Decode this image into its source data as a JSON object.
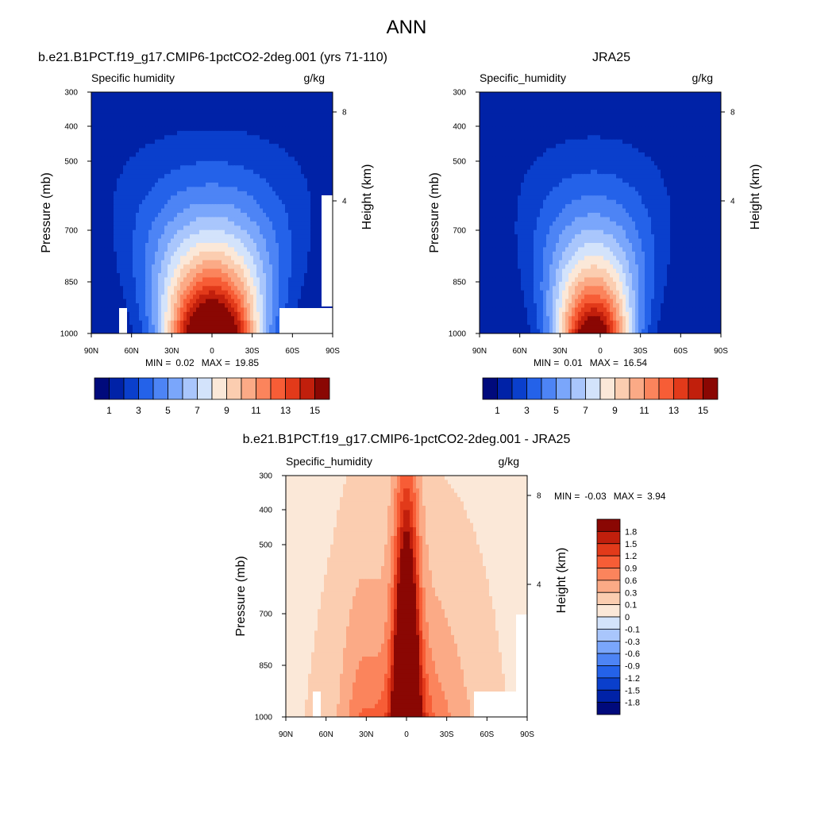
{
  "figure": {
    "title": "ANN"
  },
  "chart_data": [
    {
      "type": "heatmap",
      "title": "b.e21.B1PCT.f19_g17.CMIP6-1pctCO2-2deg.001 (yrs 71-110)",
      "subtitle_left": "Specific humidity",
      "units": "g/kg",
      "ylabel": "Pressure (mb)",
      "ylabel_right": "Height (km)",
      "x_ticks": [
        "90N",
        "60N",
        "30N",
        "0",
        "30S",
        "60S",
        "90S"
      ],
      "y_ticks": [
        "300",
        "400",
        "500",
        "700",
        "850",
        "1000"
      ],
      "y_right_ticks": [
        "8",
        "4"
      ],
      "xlim": [
        90,
        -90
      ],
      "ylim": [
        1000,
        300
      ],
      "stats": {
        "min_label": "MIN =",
        "min": "0.02",
        "max_label": "MAX =",
        "max": "19.85"
      },
      "levels": [
        0,
        1,
        2,
        3,
        4,
        5,
        6,
        7,
        8,
        9,
        10,
        11,
        12,
        13,
        14,
        15,
        16
      ],
      "colorbar_labels": [
        "1",
        "3",
        "5",
        "7",
        "9",
        "11",
        "13",
        "15"
      ],
      "field": {
        "peak": 19.85,
        "center_lat": 0,
        "top_height_km": 7.2,
        "width_deg": 34
      }
    },
    {
      "type": "heatmap",
      "title": "JRA25",
      "subtitle_left": "Specific_humidity",
      "units": "g/kg",
      "ylabel": "Pressure (mb)",
      "ylabel_right": "Height (km)",
      "x_ticks": [
        "90N",
        "60N",
        "30N",
        "0",
        "30S",
        "60S",
        "90S"
      ],
      "y_ticks": [
        "300",
        "400",
        "500",
        "700",
        "850",
        "1000"
      ],
      "y_right_ticks": [
        "8",
        "4"
      ],
      "xlim": [
        90,
        -90
      ],
      "ylim": [
        1000,
        300
      ],
      "stats": {
        "min_label": "MIN =",
        "min": "0.01",
        "max_label": "MAX =",
        "max": "16.54"
      },
      "levels": [
        0,
        1,
        2,
        3,
        4,
        5,
        6,
        7,
        8,
        9,
        10,
        11,
        12,
        13,
        14,
        15,
        16
      ],
      "colorbar_labels": [
        "1",
        "3",
        "5",
        "7",
        "9",
        "11",
        "13",
        "15"
      ],
      "field": {
        "peak": 16.54,
        "center_lat": 5,
        "top_height_km": 6.5,
        "width_deg": 28
      }
    },
    {
      "type": "heatmap",
      "title": "b.e21.B1PCT.f19_g17.CMIP6-1pctCO2-2deg.001 - JRA25",
      "subtitle_left": "Specific_humidity",
      "units": "g/kg",
      "ylabel": "Pressure (mb)",
      "ylabel_right": "Height (km)",
      "x_ticks": [
        "90N",
        "60N",
        "30N",
        "0",
        "30S",
        "60S",
        "90S"
      ],
      "y_ticks": [
        "300",
        "400",
        "500",
        "700",
        "850",
        "1000"
      ],
      "y_right_ticks": [
        "8",
        "4"
      ],
      "xlim": [
        90,
        -90
      ],
      "ylim": [
        1000,
        300
      ],
      "stats": {
        "min_label": "MIN =",
        "min": "-0.03",
        "max_label": "MAX =",
        "max": "3.94"
      },
      "levels": [
        -1.8,
        -1.5,
        -1.2,
        -0.9,
        -0.6,
        -0.3,
        -0.1,
        0,
        0.1,
        0.3,
        0.6,
        0.9,
        1.2,
        1.5,
        1.8
      ],
      "colorbar_labels": [
        "1.8",
        "1.5",
        "1.2",
        "0.9",
        "0.6",
        "0.3",
        "0.1",
        "0",
        "-0.1",
        "-0.3",
        "-0.6",
        "-0.9",
        "-1.2",
        "-1.5",
        "-1.8"
      ],
      "field": {
        "peak": 3.94,
        "center_lat": 0,
        "top_height_km": 8,
        "width_deg": 40
      }
    }
  ],
  "colors": {
    "abs_fill": [
      "#000a7c",
      "#0022a7",
      "#0a3fcc",
      "#2462e9",
      "#4d84f5",
      "#7aa6fb",
      "#a9c6fc",
      "#d3e3fb",
      "#fbe8d8",
      "#fbcdb0",
      "#fbaa86",
      "#fb845c",
      "#f75d36",
      "#e23a1a",
      "#c11f0c",
      "#8a0703"
    ],
    "diff_fill": [
      "#000a7c",
      "#0022a7",
      "#0a3fcc",
      "#2462e9",
      "#4d84f5",
      "#7aa6fb",
      "#a9c6fc",
      "#d3e3fb",
      "#fbe8d8",
      "#fbcdb0",
      "#fbaa86",
      "#fb845c",
      "#f75d36",
      "#e23a1a",
      "#c11f0c",
      "#8a0703"
    ]
  }
}
